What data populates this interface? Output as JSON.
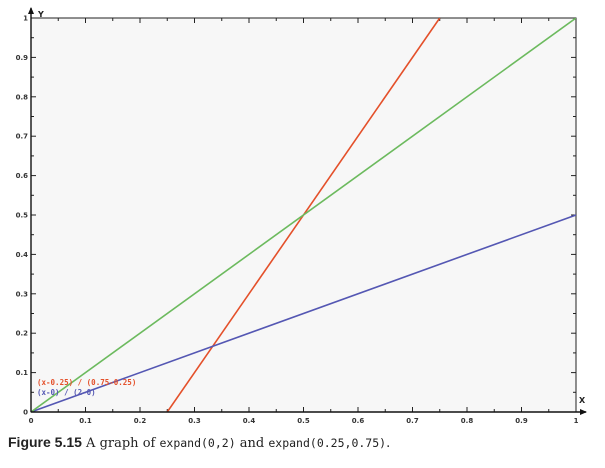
{
  "chart_data": {
    "type": "line",
    "xlabel": "X",
    "ylabel": "Y",
    "xlim": [
      0,
      1
    ],
    "ylim": [
      0,
      1
    ],
    "xticks": [
      "0",
      "0.1",
      "0.2",
      "0.3",
      "0.4",
      "0.5",
      "0.6",
      "0.7",
      "0.8",
      "0.9",
      "1"
    ],
    "yticks": [
      "0",
      "0.1",
      "0.2",
      "0.3",
      "0.4",
      "0.5",
      "0.6",
      "0.7",
      "0.8",
      "0.9",
      "1"
    ],
    "background": "#f7f7f7",
    "series": [
      {
        "name": "(x-0.25) / (0.75-0.25)",
        "color": "#e4502a",
        "x": [
          0.25,
          0.75
        ],
        "y": [
          0,
          1
        ],
        "legend": true
      },
      {
        "name": "(x-0) / (2-0)",
        "color": "#5457b3",
        "x": [
          0,
          1
        ],
        "y": [
          0,
          0.5
        ],
        "legend": true
      },
      {
        "color": "#6cba5e",
        "x": [
          0,
          1
        ],
        "y": [
          0,
          1
        ],
        "legend": false
      }
    ]
  },
  "caption": {
    "label": "Figure 5.15",
    "text1": " A graph of ",
    "code1": "expand(0,2)",
    "text2": " and ",
    "code2": "expand(0.25,0.75)",
    "text3": "."
  }
}
